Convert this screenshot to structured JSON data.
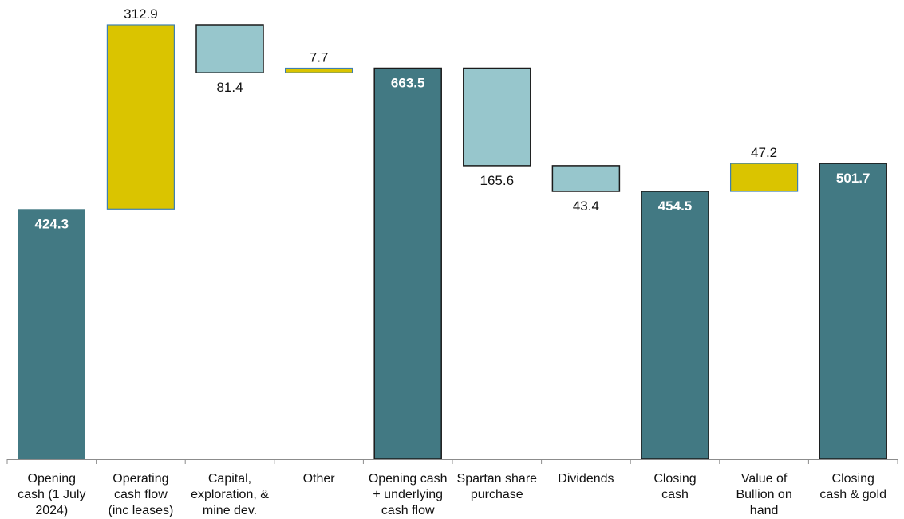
{
  "chart_data": {
    "type": "waterfall",
    "categories": [
      [
        "Opening",
        "cash (1 July",
        "2024)"
      ],
      [
        "Operating",
        "cash flow",
        "(inc leases)"
      ],
      [
        "Capital,",
        "exploration, &",
        "mine dev."
      ],
      [
        "Other"
      ],
      [
        "Opening cash",
        "+ underlying",
        "cash flow"
      ],
      [
        "Spartan share",
        "purchase"
      ],
      [
        "Dividends"
      ],
      [
        "Closing",
        "cash"
      ],
      [
        "Value of",
        "Bullion on",
        "hand"
      ],
      [
        "Closing",
        "cash & gold"
      ]
    ],
    "bars": [
      {
        "kind": "total",
        "start": 0,
        "end": 424.3,
        "label": "424.3"
      },
      {
        "kind": "increase",
        "start": 424.3,
        "end": 737.2,
        "label": "312.9"
      },
      {
        "kind": "decrease",
        "start": 737.2,
        "end": 655.8,
        "label": "81.4"
      },
      {
        "kind": "increase",
        "start": 655.8,
        "end": 663.5,
        "label": "7.7"
      },
      {
        "kind": "total",
        "start": 0,
        "end": 663.5,
        "label": "663.5"
      },
      {
        "kind": "decrease",
        "start": 663.5,
        "end": 497.9,
        "label": "165.6"
      },
      {
        "kind": "decrease",
        "start": 497.9,
        "end": 454.5,
        "label": "43.4"
      },
      {
        "kind": "total",
        "start": 0,
        "end": 454.5,
        "label": "454.5"
      },
      {
        "kind": "increase",
        "start": 454.5,
        "end": 501.7,
        "label": "47.2"
      },
      {
        "kind": "total",
        "start": 0,
        "end": 501.7,
        "label": "501.7"
      }
    ],
    "ylim": [
      0,
      737.2
    ],
    "grid": false,
    "legend": "none",
    "colors": {
      "total": "#427983",
      "increase": "#dac400",
      "decrease": "#97c6cc",
      "outline_dark": "#1a1a1a",
      "outline_blue": "#3e7fb0"
    }
  }
}
